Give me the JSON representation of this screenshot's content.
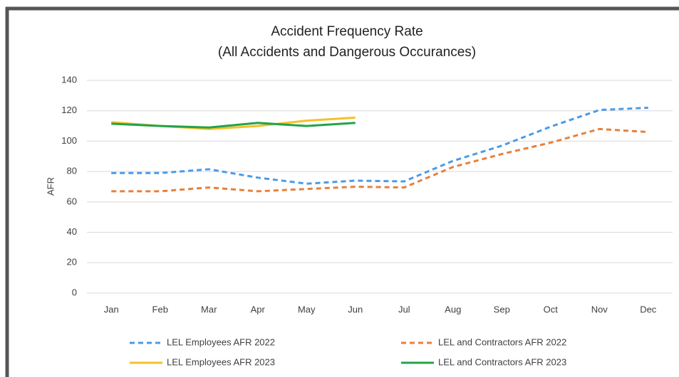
{
  "chart_data": {
    "type": "line",
    "title": "Accident Frequency Rate",
    "subtitle": "(All Accidents and Dangerous Occurances)",
    "y_label": "AFR",
    "categories": [
      "Jan",
      "Feb",
      "Mar",
      "Apr",
      "May",
      "Jun",
      "Jul",
      "Aug",
      "Sep",
      "Oct",
      "Nov",
      "Dec"
    ],
    "series": [
      {
        "name": "LEL Employees AFR 2022",
        "color": "#4a9be8",
        "dashed": true,
        "values": [
          79,
          79,
          81.5,
          76,
          72,
          74,
          73.5,
          87,
          97,
          109.5,
          120.5,
          122
        ]
      },
      {
        "name": "LEL and Contractors AFR 2022",
        "color": "#e8803a",
        "dashed": true,
        "values": [
          67,
          67,
          69.5,
          67,
          68.5,
          70,
          69.5,
          83,
          91.5,
          99,
          108,
          106
        ]
      },
      {
        "name": "LEL Employees AFR 2023",
        "color": "#f5c02a",
        "dashed": false,
        "values": [
          112.5,
          110,
          108,
          110,
          113.5,
          115.5,
          null,
          null,
          null,
          null,
          null,
          null
        ]
      },
      {
        "name": "LEL and Contractors AFR 2023",
        "color": "#22a34a",
        "dashed": false,
        "values": [
          111.5,
          110,
          109,
          112,
          110,
          112,
          null,
          null,
          null,
          null,
          null,
          null
        ]
      }
    ],
    "ylim": [
      0,
      140
    ],
    "yticks": [
      0,
      20,
      40,
      60,
      80,
      100,
      120,
      140
    ],
    "grid": true
  }
}
